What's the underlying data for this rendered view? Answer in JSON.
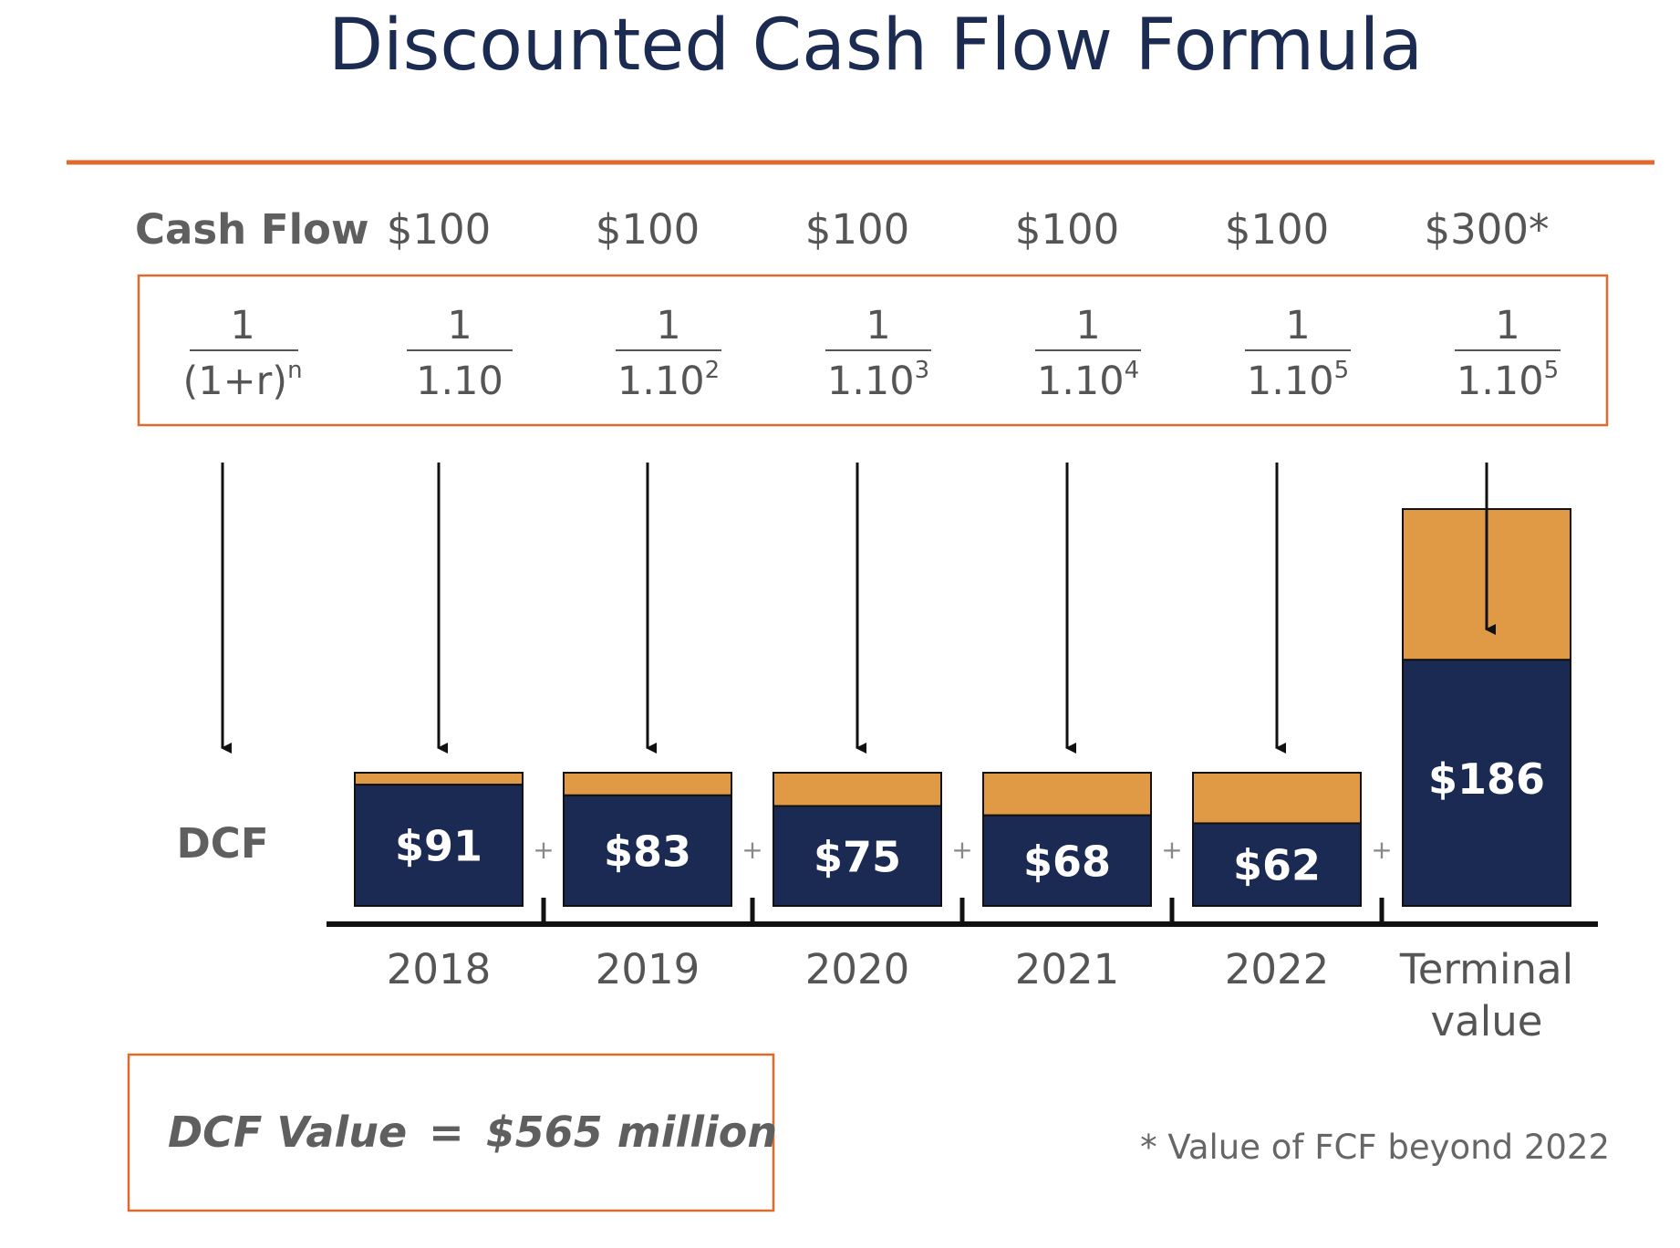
{
  "title": "Discounted Cash Flow Formula",
  "colors": {
    "title": "#1c2b51",
    "accent_orange": "#e0692e",
    "bar_navy": "#1b2a52",
    "bar_gold": "#e09a45",
    "label_gray": "#5f5f5f",
    "text_gray": "#555555",
    "axis": "#111111"
  },
  "row_labels": {
    "cash_flow": "Cash Flow",
    "dcf": "DCF"
  },
  "formula": {
    "numerator": "1",
    "base": "(1+r)",
    "exponent": "n"
  },
  "chart_data": {
    "type": "bar",
    "categories": [
      "2018",
      "2019",
      "2020",
      "2021",
      "2022",
      "Terminal value"
    ],
    "category_lines": [
      [
        "2018"
      ],
      [
        "2019"
      ],
      [
        "2020"
      ],
      [
        "2021"
      ],
      [
        "2022"
      ],
      [
        "Terminal",
        "value"
      ]
    ],
    "cash_flow_labels": [
      "$100",
      "$100",
      "$100",
      "$100",
      "$100",
      "$300*"
    ],
    "cash_flows": [
      100,
      100,
      100,
      100,
      100,
      300
    ],
    "discount_factors": [
      {
        "numerator": "1",
        "base": "1.10",
        "exponent": ""
      },
      {
        "numerator": "1",
        "base": "1.10",
        "exponent": "2"
      },
      {
        "numerator": "1",
        "base": "1.10",
        "exponent": "3"
      },
      {
        "numerator": "1",
        "base": "1.10",
        "exponent": "4"
      },
      {
        "numerator": "1",
        "base": "1.10",
        "exponent": "5"
      },
      {
        "numerator": "1",
        "base": "1.10",
        "exponent": "5"
      }
    ],
    "dcf_labels": [
      "$91",
      "$83",
      "$75",
      "$68",
      "$62",
      "$186"
    ],
    "dcf_values": [
      91,
      83,
      75,
      68,
      62,
      186
    ],
    "plus_sign": "+"
  },
  "result": {
    "label": "DCF Value",
    "equals": "=",
    "value": "$565 million"
  },
  "footnote": "* Value of FCF beyond 2022"
}
